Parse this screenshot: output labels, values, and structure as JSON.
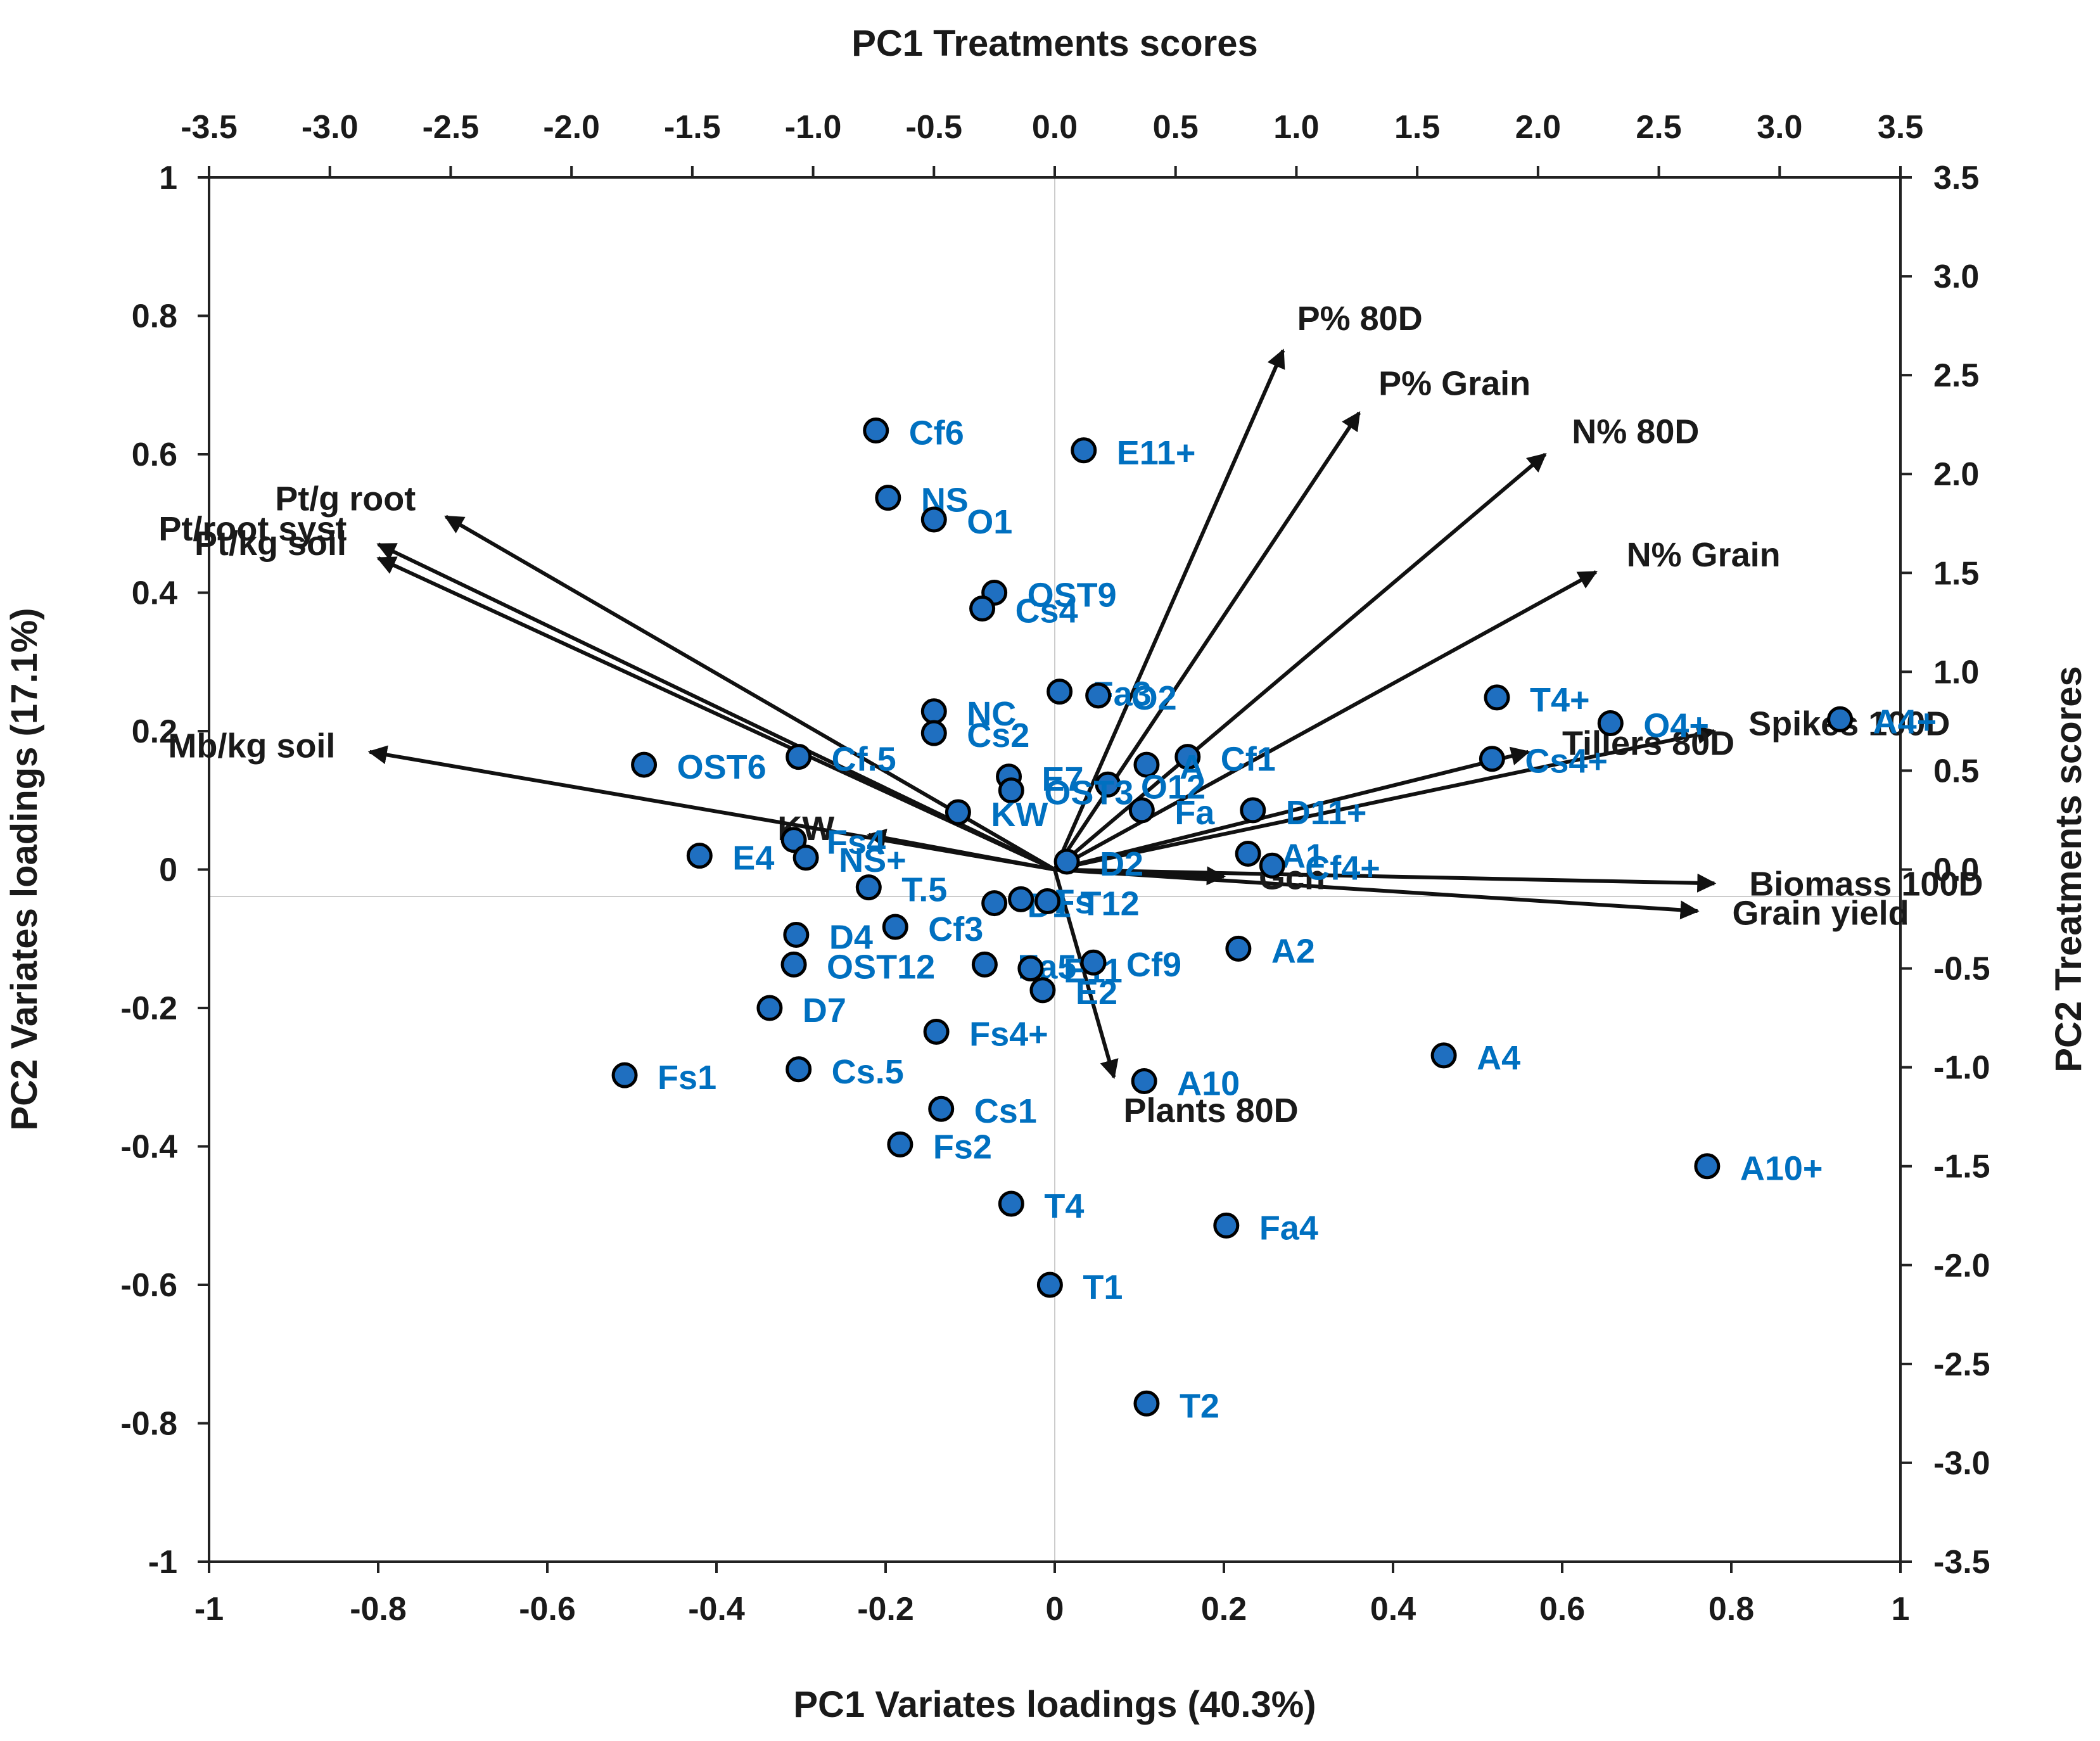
{
  "chart_data": {
    "type": "scatter",
    "subtype": "pca-biplot",
    "title": "",
    "top_axis": {
      "title": "PC1 Treatments scores",
      "range": [
        -3.5,
        3.5
      ],
      "ticks": [
        "-3.5",
        "-3.0",
        "-2.5",
        "-2.0",
        "-1.5",
        "-1.0",
        "-0.5",
        "0.0",
        "0.5",
        "1.0",
        "1.5",
        "2.0",
        "2.5",
        "3.0",
        "3.5"
      ]
    },
    "bottom_axis": {
      "title": "PC1 Variates loadings (40.3%)",
      "range": [
        -1,
        1
      ],
      "ticks": [
        "-1",
        "-0.8",
        "-0.6",
        "-0.4",
        "-0.2",
        "0",
        "0.2",
        "0.4",
        "0.6",
        "0.8",
        "1"
      ]
    },
    "left_axis": {
      "title": "PC2 Variates loadings (17.1%)",
      "range": [
        -1,
        1
      ],
      "ticks": [
        "1",
        "0.8",
        "0.6",
        "0.4",
        "0.2",
        "0",
        "-0.2",
        "-0.4",
        "-0.6",
        "-0.8",
        "-1"
      ]
    },
    "right_axis": {
      "title": "PC2 Treatments scores",
      "range": [
        -3.5,
        3.5
      ],
      "ticks": [
        "3.5",
        "3.0",
        "2.5",
        "2.0",
        "1.5",
        "1.0",
        "0.5",
        "0.0",
        "-0.5",
        "-1.0",
        "-1.5",
        "-2.0",
        "-2.5",
        "-3.0",
        "-3.5"
      ]
    },
    "colors": {
      "arrow": "#111111",
      "point_fill": "#1f6fc0",
      "point_edge": "#000000",
      "point_label": "#0070c0",
      "axis": "#222222"
    },
    "variates": [
      {
        "name": "P% 80D",
        "x": 0.27,
        "y": 0.75
      },
      {
        "name": "P% Grain",
        "x": 0.36,
        "y": 0.66
      },
      {
        "name": "N% 80D",
        "x": 0.58,
        "y": 0.6
      },
      {
        "name": "N% Grain",
        "x": 0.64,
        "y": 0.43
      },
      {
        "name": "Spikes 100D",
        "x": 0.78,
        "y": 0.2
      },
      {
        "name": "Tillers 80D",
        "x": 0.56,
        "y": 0.17
      },
      {
        "name": "Biomass 100D",
        "x": 0.78,
        "y": -0.02
      },
      {
        "name": "Grain yield",
        "x": 0.76,
        "y": -0.06
      },
      {
        "name": "Plants 80D",
        "x": 0.07,
        "y": -0.3
      },
      {
        "name": "KW",
        "x": -0.22,
        "y": 0.05
      },
      {
        "name": "Pt/g root",
        "x": -0.72,
        "y": 0.51
      },
      {
        "name": "Pt/root syst",
        "x": -0.8,
        "y": 0.47
      },
      {
        "name": "Pt/kg soil",
        "x": -0.8,
        "y": 0.45
      },
      {
        "name": "Mb/kg soil",
        "x": -0.81,
        "y": 0.17
      },
      {
        "name": "Gch",
        "x": 0.2,
        "y": -0.01
      }
    ],
    "treatments": [
      {
        "name": "Cf6",
        "x": -0.74,
        "y": 2.22
      },
      {
        "name": "NS",
        "x": -0.69,
        "y": 1.88
      },
      {
        "name": "O1",
        "x": -0.5,
        "y": 1.77
      },
      {
        "name": "E11+",
        "x": 0.12,
        "y": 2.12
      },
      {
        "name": "OST9",
        "x": -0.25,
        "y": 1.4
      },
      {
        "name": "Cs4",
        "x": -0.3,
        "y": 1.32
      },
      {
        "name": "Fa3",
        "x": 0.02,
        "y": 0.9
      },
      {
        "name": "O2",
        "x": 0.18,
        "y": 0.88
      },
      {
        "name": "NC",
        "x": -0.5,
        "y": 0.8
      },
      {
        "name": "Cs2",
        "x": -0.5,
        "y": 0.69
      },
      {
        "name": "Cf.5",
        "x": -1.06,
        "y": 0.57
      },
      {
        "name": "OST6",
        "x": -1.7,
        "y": 0.53
      },
      {
        "name": "E7",
        "x": -0.19,
        "y": 0.47
      },
      {
        "name": "Cf1",
        "x": 0.55,
        "y": 0.57
      },
      {
        "name": "A",
        "x": 0.38,
        "y": 0.53
      },
      {
        "name": "O12",
        "x": 0.22,
        "y": 0.43
      },
      {
        "name": "OST3",
        "x": -0.18,
        "y": 0.4
      },
      {
        "name": "Fa",
        "x": 0.36,
        "y": 0.3
      },
      {
        "name": "D11+",
        "x": 0.82,
        "y": 0.3
      },
      {
        "name": "KW",
        "x": -0.4,
        "y": 0.29
      },
      {
        "name": "T4+",
        "x": 1.83,
        "y": 0.87
      },
      {
        "name": "O4+",
        "x": 2.3,
        "y": 0.74
      },
      {
        "name": "A4+",
        "x": 3.25,
        "y": 0.76
      },
      {
        "name": "Cs4+",
        "x": 1.81,
        "y": 0.56
      },
      {
        "name": "E4",
        "x": -1.47,
        "y": 0.07
      },
      {
        "name": "Fs4",
        "x": -1.08,
        "y": 0.15
      },
      {
        "name": "NS+",
        "x": -1.03,
        "y": 0.06
      },
      {
        "name": "D2",
        "x": 0.05,
        "y": 0.04
      },
      {
        "name": "A1",
        "x": 0.8,
        "y": 0.08
      },
      {
        "name": "Cf4+",
        "x": 0.9,
        "y": 0.02
      },
      {
        "name": "T.5",
        "x": -0.77,
        "y": -0.09
      },
      {
        "name": "D1",
        "x": -0.25,
        "y": -0.17
      },
      {
        "name": "Fs",
        "x": -0.14,
        "y": -0.15
      },
      {
        "name": "T12",
        "x": -0.03,
        "y": -0.16
      },
      {
        "name": "D4",
        "x": -1.07,
        "y": -0.33
      },
      {
        "name": "Cf3",
        "x": -0.66,
        "y": -0.29
      },
      {
        "name": "OST12",
        "x": -1.08,
        "y": -0.48
      },
      {
        "name": "Fa5",
        "x": -0.29,
        "y": -0.48
      },
      {
        "name": "E11",
        "x": -0.1,
        "y": -0.5
      },
      {
        "name": "Cf9",
        "x": 0.16,
        "y": -0.47
      },
      {
        "name": "E2",
        "x": -0.05,
        "y": -0.61
      },
      {
        "name": "A2",
        "x": 0.76,
        "y": -0.4
      },
      {
        "name": "D7",
        "x": -1.18,
        "y": -0.7
      },
      {
        "name": "Fs4+",
        "x": -0.49,
        "y": -0.82
      },
      {
        "name": "Fs1",
        "x": -1.78,
        "y": -1.04
      },
      {
        "name": "Cs.5",
        "x": -1.06,
        "y": -1.01
      },
      {
        "name": "A10",
        "x": 0.37,
        "y": -1.07
      },
      {
        "name": "A4",
        "x": 1.61,
        "y": -0.94
      },
      {
        "name": "Cs1",
        "x": -0.47,
        "y": -1.21
      },
      {
        "name": "Fs2",
        "x": -0.64,
        "y": -1.39
      },
      {
        "name": "A10+",
        "x": 2.7,
        "y": -1.5
      },
      {
        "name": "T4",
        "x": -0.18,
        "y": -1.69
      },
      {
        "name": "Fa4",
        "x": 0.71,
        "y": -1.8
      },
      {
        "name": "T1",
        "x": -0.02,
        "y": -2.1
      },
      {
        "name": "T2",
        "x": 0.38,
        "y": -2.7
      }
    ]
  }
}
